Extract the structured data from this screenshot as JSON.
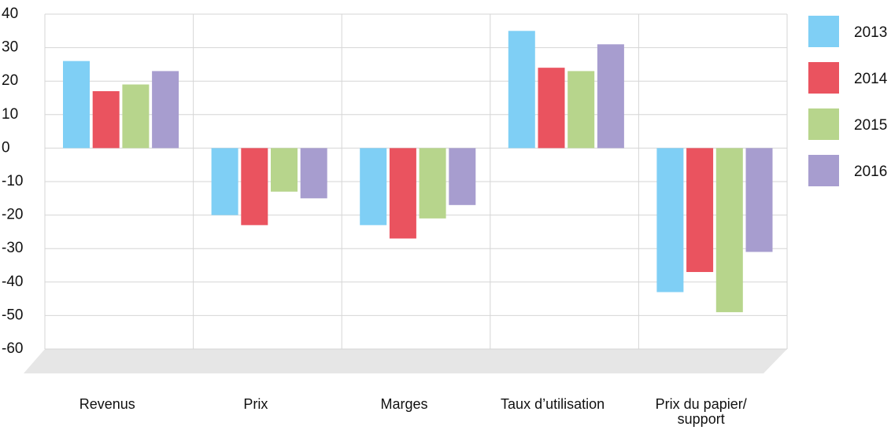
{
  "chart_data": {
    "type": "bar",
    "categories": [
      "Revenus",
      "Prix",
      "Marges",
      "Taux d’utilisation",
      "Prix du papier/ support"
    ],
    "series": [
      {
        "name": "2013",
        "color": "#7fcff5",
        "values": [
          26,
          -20,
          -23,
          35,
          -43
        ]
      },
      {
        "name": "2014",
        "color": "#ea535f",
        "values": [
          17,
          -23,
          -27,
          24,
          -37
        ]
      },
      {
        "name": "2015",
        "color": "#b7d58c",
        "values": [
          19,
          -13,
          -21,
          23,
          -49
        ]
      },
      {
        "name": "2016",
        "color": "#a79dcf",
        "values": [
          23,
          -15,
          -17,
          31,
          -31
        ]
      }
    ],
    "ylim": [
      -60,
      40
    ],
    "yticks": [
      40,
      30,
      20,
      10,
      0,
      -10,
      -20,
      -30,
      -40,
      -50,
      -60
    ],
    "grid": true,
    "legend": "right"
  }
}
